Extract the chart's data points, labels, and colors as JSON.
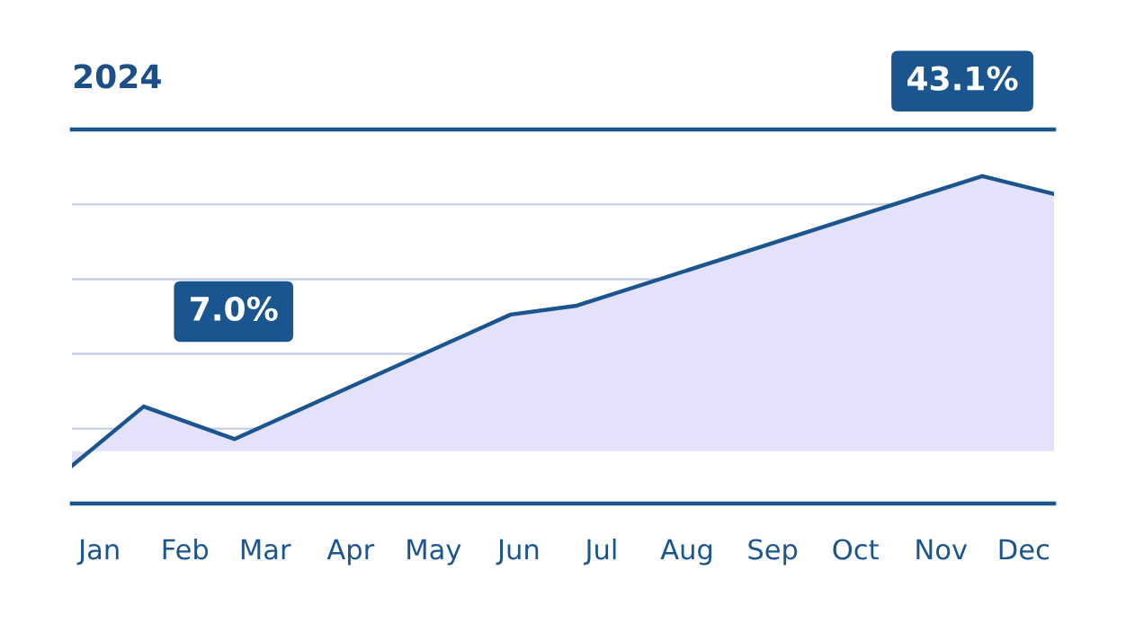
{
  "chart_data": {
    "type": "area",
    "title": "2024",
    "x": [
      "2024-01-05",
      "2024-01-31",
      "2024-03-04",
      "2024-06-12",
      "2024-07-06",
      "2024-11-30",
      "2024-12-26"
    ],
    "xlim": [
      "2024-01-05",
      "2024-12-26"
    ],
    "xticks": [
      {
        "value": "2024-01-15",
        "label": "Jan"
      },
      {
        "value": "2024-02-15",
        "label": "Feb"
      },
      {
        "value": "2024-03-15",
        "label": "Mar"
      },
      {
        "value": "2024-04-15",
        "label": "Apr"
      },
      {
        "value": "2024-05-15",
        "label": "May"
      },
      {
        "value": "2024-06-15",
        "label": "Jun"
      },
      {
        "value": "2024-07-15",
        "label": "Jul"
      },
      {
        "value": "2024-08-15",
        "label": "Aug"
      },
      {
        "value": "2024-09-15",
        "label": "Sep"
      },
      {
        "value": "2024-10-15",
        "label": "Oct"
      },
      {
        "value": "2024-11-15",
        "label": "Nov"
      },
      {
        "value": "2024-12-15",
        "label": "Dec"
      }
    ],
    "ylim": [
      -8.2,
      50.4
    ],
    "series": [
      {
        "color": "#1b5590",
        "values": [
          -2.3,
          7.0,
          1.9,
          21.4,
          22.8,
          43.1,
          40.3
        ],
        "value_labels": [
          null,
          "7.0%",
          null,
          null,
          null,
          "43.1%",
          null
        ]
      }
    ],
    "grid": "y"
  }
}
